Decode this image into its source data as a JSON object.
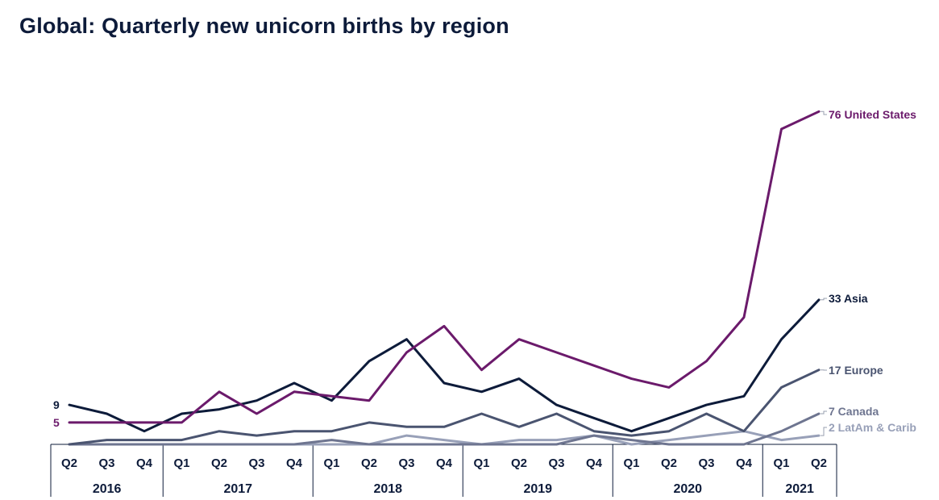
{
  "title": "Global: Quarterly new unicorn births by region",
  "chart_data": {
    "type": "line",
    "title": "Global: Quarterly new unicorn births by region",
    "xlabel": "",
    "ylabel": "",
    "ylim": [
      0,
      80
    ],
    "grid": false,
    "legend": "none (series labeled at line ends)",
    "categories": [
      "Q2",
      "Q3",
      "Q4",
      "Q1",
      "Q2",
      "Q3",
      "Q4",
      "Q1",
      "Q2",
      "Q3",
      "Q4",
      "Q1",
      "Q2",
      "Q3",
      "Q4",
      "Q1",
      "Q2",
      "Q3",
      "Q4",
      "Q1",
      "Q2"
    ],
    "years": [
      {
        "label": "2016",
        "quarters": 3
      },
      {
        "label": "2017",
        "quarters": 4
      },
      {
        "label": "2018",
        "quarters": 4
      },
      {
        "label": "2019",
        "quarters": 4
      },
      {
        "label": "2020",
        "quarters": 4
      },
      {
        "label": "2021",
        "quarters": 2
      }
    ],
    "series": [
      {
        "name": "United States",
        "end_label": "76 United States",
        "start_label": "5",
        "color": "#6b1a6b",
        "values": [
          5,
          5,
          5,
          5,
          12,
          7,
          12,
          11,
          10,
          21,
          27,
          17,
          24,
          21,
          18,
          15,
          13,
          19,
          29,
          72,
          76
        ]
      },
      {
        "name": "Asia",
        "end_label": "33 Asia",
        "start_label": "9",
        "color": "#0d1b3a",
        "values": [
          9,
          7,
          3,
          7,
          8,
          10,
          14,
          10,
          19,
          24,
          14,
          12,
          15,
          9,
          6,
          3,
          6,
          9,
          11,
          24,
          33
        ]
      },
      {
        "name": "Europe",
        "end_label": "17 Europe",
        "color": "#4a5470",
        "values": [
          0,
          1,
          1,
          1,
          3,
          2,
          3,
          3,
          5,
          4,
          4,
          7,
          4,
          7,
          3,
          2,
          3,
          7,
          3,
          13,
          17
        ]
      },
      {
        "name": "Canada",
        "end_label": "7 Canada",
        "color": "#6e7590",
        "values": [
          0,
          0,
          0,
          0,
          0,
          0,
          0,
          1,
          0,
          0,
          0,
          0,
          0,
          0,
          2,
          1,
          0,
          0,
          0,
          3,
          7
        ]
      },
      {
        "name": "LatAm & Carib",
        "end_label": "2 LatAm & Carib",
        "color": "#98a0b8",
        "values": [
          0,
          0,
          0,
          0,
          0,
          0,
          0,
          0,
          0,
          2,
          1,
          0,
          1,
          1,
          2,
          0,
          1,
          2,
          3,
          1,
          2
        ]
      }
    ]
  }
}
